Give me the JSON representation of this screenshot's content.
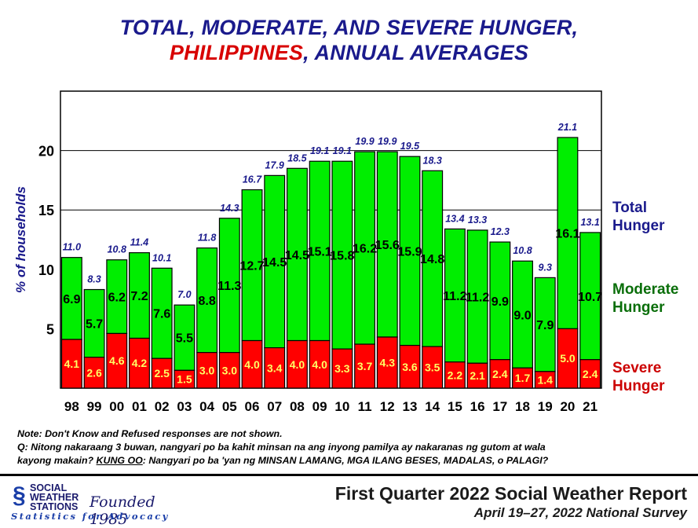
{
  "title": {
    "line1": "TOTAL, MODERATE, AND SEVERE HUNGER,",
    "line2_red": "PHILIPPINES",
    "line2_rest": ", ANNUAL AVERAGES"
  },
  "chart_data": {
    "type": "bar",
    "stacked": true,
    "ylabel": "% of households",
    "ylim": [
      0,
      25
    ],
    "yticks": [
      5,
      10,
      15,
      20
    ],
    "categories": [
      "98",
      "99",
      "00",
      "01",
      "02",
      "03",
      "04",
      "05",
      "06",
      "07",
      "08",
      "09",
      "10",
      "11",
      "12",
      "13",
      "14",
      "15",
      "16",
      "17",
      "18",
      "19",
      "20",
      "21"
    ],
    "series": [
      {
        "name": "Severe Hunger",
        "color": "#ff0000",
        "values": [
          4.1,
          2.6,
          4.6,
          4.2,
          2.5,
          1.5,
          3.0,
          3.0,
          4.0,
          3.4,
          4.0,
          4.0,
          3.3,
          3.7,
          4.3,
          3.6,
          3.5,
          2.2,
          2.1,
          2.4,
          1.7,
          1.4,
          5.0,
          2.4
        ]
      },
      {
        "name": "Moderate Hunger",
        "color": "#00ee00",
        "values": [
          6.9,
          5.7,
          6.2,
          7.2,
          7.6,
          5.5,
          8.8,
          11.3,
          12.7,
          14.5,
          14.5,
          15.1,
          15.8,
          16.2,
          15.6,
          15.9,
          14.8,
          11.2,
          11.2,
          9.9,
          9.0,
          7.9,
          16.1,
          10.7
        ]
      }
    ],
    "totals": [
      "11.0",
      "8.3",
      "10.8",
      "11.4",
      "10.1",
      "7.0",
      "11.8",
      "14.3",
      "16.7",
      "17.9",
      "18.5",
      "19.1",
      "19.1",
      "19.9",
      "19.9",
      "19.5",
      "18.3",
      "13.4",
      "13.3",
      "12.3",
      "10.8",
      "9.3",
      "21.1",
      "13.1"
    ],
    "legend": {
      "total": "Total\nHunger",
      "moderate": "Moderate\nHunger",
      "severe": "Severe\nHunger"
    },
    "colors": {
      "total_label": "#1a1a8c",
      "moderate_label": "#0a6e0a",
      "severe_label": "#cc0000",
      "severe_value": "#ffff66"
    }
  },
  "notes": {
    "line1": "Note: Don't Know and Refused responses are not shown.",
    "line2": "Q: Nitong nakaraang 3 buwan, nangyari po ba kahit minsan na ang inyong pamilya ay nakaranas ng gutom at wala",
    "line3_a": "kayong makain?  ",
    "line3_b": "KUNG OO",
    "line3_c": ":  Nangyari po ba 'yan ng MINSAN LAMANG, MGA ILANG BESES, MADALAS, o PALAGI?"
  },
  "footer": {
    "org": "SOCIAL\nWEATHER\nSTATIONS",
    "founded": "Founded 1985",
    "tagline": "Statistics for Advocacy",
    "report": "First Quarter 2022 Social Weather Report",
    "survey": "April 19–27, 2022 National Survey"
  }
}
